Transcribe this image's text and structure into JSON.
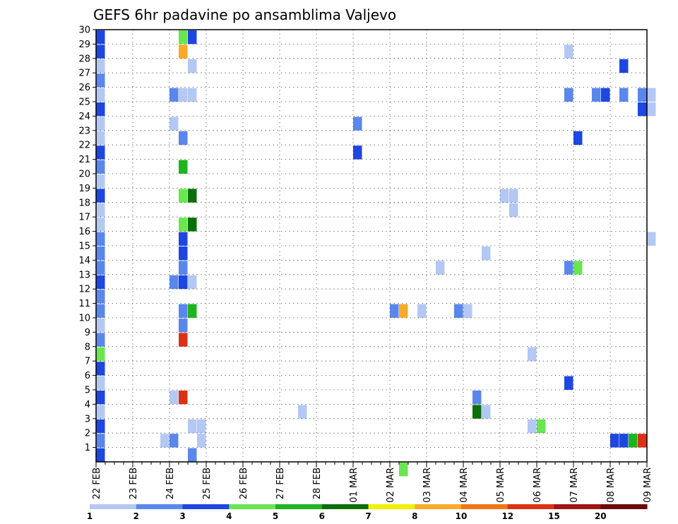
{
  "chart_data": {
    "type": "heatmap",
    "title": "GEFS 6hr padavine po ansamblima Valjevo",
    "xlabel": "",
    "ylabel": "",
    "x_tick_labels": [
      "22 FEB",
      "23 FEB",
      "24 FEB",
      "25 FEB",
      "26 FEB",
      "27 FEB",
      "28 FEB",
      "01 MAR",
      "02 MAR",
      "03 MAR",
      "04 MAR",
      "05 MAR",
      "06 MAR",
      "07 MAR",
      "08 MAR",
      "09 MAR"
    ],
    "xlim_steps": [
      0,
      60
    ],
    "y_tick_labels": [
      "1",
      "2",
      "3",
      "4",
      "5",
      "6",
      "7",
      "8",
      "9",
      "10",
      "11",
      "12",
      "13",
      "14",
      "15",
      "16",
      "17",
      "18",
      "19",
      "20",
      "21",
      "22",
      "23",
      "24",
      "25",
      "26",
      "27",
      "28",
      "29",
      "30"
    ],
    "ylim": [
      0,
      30
    ],
    "grid": true,
    "colorbar": {
      "labels": [
        "1",
        "2",
        "3",
        "4",
        "5",
        "6",
        "7",
        "8",
        "10",
        "12",
        "15",
        "20"
      ],
      "colors": [
        "#b4c8f4",
        "#5a87ec",
        "#1e46e0",
        "#6ae650",
        "#1eb41e",
        "#0a6e0a",
        "#f0f000",
        "#faaa28",
        "#f07814",
        "#dc3214",
        "#a01414",
        "#6e0a0a"
      ]
    },
    "cells": [
      [
        0,
        30,
        3
      ],
      [
        0,
        29,
        3
      ],
      [
        0,
        28,
        1
      ],
      [
        0,
        27,
        2
      ],
      [
        0,
        26,
        1
      ],
      [
        0,
        25,
        3
      ],
      [
        0,
        24,
        1
      ],
      [
        0,
        23,
        1
      ],
      [
        0,
        22,
        3
      ],
      [
        0,
        21,
        2
      ],
      [
        0,
        20,
        1
      ],
      [
        0,
        19,
        3
      ],
      [
        0,
        18,
        1
      ],
      [
        0,
        17,
        1
      ],
      [
        0,
        16,
        2
      ],
      [
        0,
        15,
        2
      ],
      [
        0,
        14,
        2
      ],
      [
        0,
        13,
        3
      ],
      [
        0,
        12,
        2
      ],
      [
        0,
        11,
        2
      ],
      [
        0,
        10,
        1
      ],
      [
        0,
        9,
        2
      ],
      [
        0,
        8,
        4
      ],
      [
        0,
        7,
        3
      ],
      [
        0,
        6,
        1
      ],
      [
        0,
        5,
        3
      ],
      [
        0,
        4,
        1
      ],
      [
        0,
        3,
        3
      ],
      [
        0,
        2,
        2
      ],
      [
        0,
        1,
        3
      ],
      [
        9,
        30,
        4
      ],
      [
        10,
        30,
        3
      ],
      [
        9,
        29,
        8
      ],
      [
        10,
        28,
        1
      ],
      [
        8,
        26,
        2
      ],
      [
        9,
        26,
        1
      ],
      [
        10,
        26,
        1
      ],
      [
        8,
        24,
        1
      ],
      [
        9,
        23,
        2
      ],
      [
        9,
        21,
        5
      ],
      [
        9,
        19,
        4
      ],
      [
        10,
        19,
        6
      ],
      [
        9,
        17,
        4
      ],
      [
        10,
        17,
        6
      ],
      [
        9,
        16,
        3
      ],
      [
        9,
        15,
        3
      ],
      [
        9,
        14,
        2
      ],
      [
        8,
        13,
        2
      ],
      [
        9,
        13,
        3
      ],
      [
        10,
        13,
        1
      ],
      [
        9,
        11,
        2
      ],
      [
        10,
        11,
        5
      ],
      [
        9,
        10,
        2
      ],
      [
        9,
        9,
        10
      ],
      [
        8,
        5,
        1
      ],
      [
        9,
        5,
        10
      ],
      [
        10,
        3,
        1
      ],
      [
        11,
        3,
        1
      ],
      [
        7,
        2,
        1
      ],
      [
        8,
        2,
        2
      ],
      [
        11,
        2,
        1
      ],
      [
        10,
        1,
        2
      ],
      [
        22,
        4,
        1
      ],
      [
        28,
        24,
        2
      ],
      [
        28,
        22,
        3
      ],
      [
        32,
        11,
        2
      ],
      [
        33,
        11,
        8
      ],
      [
        35,
        11,
        1
      ],
      [
        33,
        0,
        4
      ],
      [
        37,
        14,
        1
      ],
      [
        39,
        11,
        2
      ],
      [
        40,
        11,
        1
      ],
      [
        41,
        5,
        2
      ],
      [
        41,
        4,
        6
      ],
      [
        42,
        4,
        1
      ],
      [
        42,
        15,
        1
      ],
      [
        44,
        19,
        1
      ],
      [
        45,
        19,
        1
      ],
      [
        45,
        18,
        1
      ],
      [
        47,
        8,
        1
      ],
      [
        47,
        3,
        1
      ],
      [
        48,
        3,
        4
      ],
      [
        51,
        29,
        1
      ],
      [
        51,
        26,
        2
      ],
      [
        51,
        14,
        2
      ],
      [
        52,
        14,
        4
      ],
      [
        51,
        6,
        3
      ],
      [
        52,
        23,
        3
      ],
      [
        54,
        26,
        2
      ],
      [
        55,
        26,
        3
      ],
      [
        57,
        26,
        2
      ],
      [
        57,
        28,
        3
      ],
      [
        59,
        26,
        2
      ],
      [
        60,
        26,
        1
      ],
      [
        59,
        25,
        3
      ],
      [
        60,
        25,
        1
      ],
      [
        60,
        16,
        1
      ],
      [
        56,
        2,
        3
      ],
      [
        57,
        2,
        3
      ],
      [
        58,
        2,
        5
      ],
      [
        59,
        2,
        10
      ]
    ]
  }
}
